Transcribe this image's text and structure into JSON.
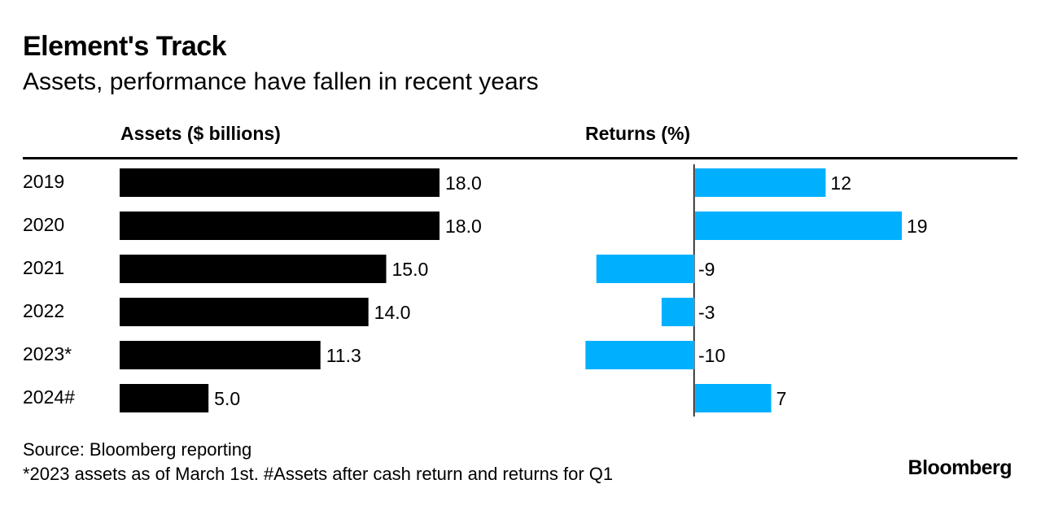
{
  "title": "Element's Track",
  "subtitle": "Assets, performance have fallen in recent years",
  "footer": {
    "source": "Source: Bloomberg reporting",
    "note": "*2023 assets as of March 1st. #Assets after cash return and returns for Q1",
    "logo": "Bloomberg"
  },
  "colors": {
    "assets_bar": "#000000",
    "returns_bar": "#00b0ff",
    "text": "#000000"
  },
  "chart_data": [
    {
      "type": "bar",
      "orientation": "horizontal",
      "title": "Assets ($ billions)",
      "categories": [
        "2019",
        "2020",
        "2021",
        "2022",
        "2023*",
        "2024#"
      ],
      "values": [
        18.0,
        18.0,
        15.0,
        14.0,
        11.3,
        5.0
      ],
      "value_labels": [
        "18.0",
        "18.0",
        "15.0",
        "14.0",
        "11.3",
        "5.0"
      ],
      "xlim": [
        0,
        18
      ]
    },
    {
      "type": "bar",
      "orientation": "horizontal",
      "title": "Returns (%)",
      "categories": [
        "2019",
        "2020",
        "2021",
        "2022",
        "2023*",
        "2024#"
      ],
      "values": [
        12,
        19,
        -9,
        -3,
        -10,
        7
      ],
      "value_labels": [
        "12",
        "19",
        "-9",
        "-3",
        "-10",
        "7"
      ],
      "xlim": [
        -10,
        19
      ]
    }
  ]
}
